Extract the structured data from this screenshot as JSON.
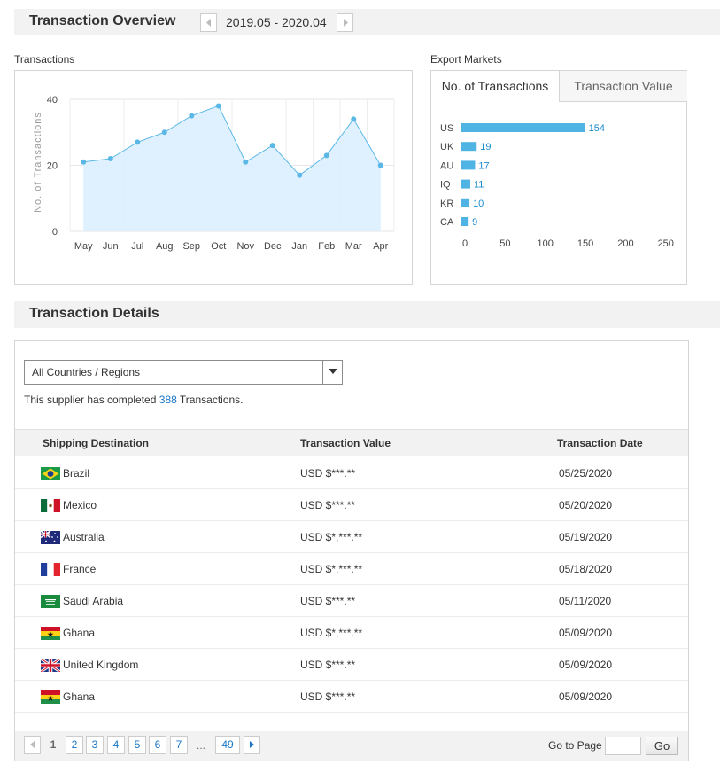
{
  "overview": {
    "title": "Transaction Overview",
    "date_range": "2019.05 - 2020.04"
  },
  "transactions_chart": {
    "caption": "Transactions",
    "ylabel": "No. of Transactions",
    "y_ticks": [
      "0",
      "20",
      "40"
    ]
  },
  "markets": {
    "caption": "Export Markets",
    "tabs": [
      "No. of Transactions",
      "Transaction Value"
    ],
    "x_ticks": [
      "0",
      "50",
      "100",
      "150",
      "200",
      "250"
    ]
  },
  "chart_data": [
    {
      "type": "area",
      "title": "",
      "xlabel": "",
      "ylabel": "No. of Transactions",
      "categories": [
        "May",
        "Jun",
        "Jul",
        "Aug",
        "Sep",
        "Oct",
        "Nov",
        "Dec",
        "Jan",
        "Feb",
        "Mar",
        "Apr"
      ],
      "values": [
        21,
        22,
        27,
        30,
        35,
        38,
        21,
        26,
        17,
        23,
        34,
        20
      ],
      "ylim": [
        0,
        40
      ],
      "grid": true,
      "color": "#5bb8e6"
    },
    {
      "type": "bar",
      "orientation": "horizontal",
      "categories": [
        "US",
        "UK",
        "AU",
        "IQ",
        "KR",
        "CA"
      ],
      "values": [
        154,
        19,
        17,
        11,
        10,
        9
      ],
      "xlim": [
        0,
        250
      ],
      "color": "#4fb3e4"
    }
  ],
  "details": {
    "title": "Transaction Details",
    "filter_value": "All Countries / Regions",
    "summary_prefix": "This supplier has completed",
    "summary_count": "388",
    "summary_suffix": "Transactions.",
    "headers": {
      "destination": "Shipping Destination",
      "value": "Transaction Value",
      "date": "Transaction Date"
    },
    "rows": [
      {
        "country": "Brazil",
        "flag": "brazil-flag-icon",
        "value": "USD $***.**",
        "date": "05/25/2020"
      },
      {
        "country": "Mexico",
        "flag": "mexico-flag-icon",
        "value": "USD $***.**",
        "date": "05/20/2020"
      },
      {
        "country": "Australia",
        "flag": "australia-flag-icon",
        "value": "USD $*,***.**",
        "date": "05/19/2020"
      },
      {
        "country": "France",
        "flag": "france-flag-icon",
        "value": "USD $*,***.**",
        "date": "05/18/2020"
      },
      {
        "country": "Saudi Arabia",
        "flag": "saudi-arabia-flag-icon",
        "value": "USD $***.**",
        "date": "05/11/2020"
      },
      {
        "country": "Ghana",
        "flag": "ghana-flag-icon",
        "value": "USD $*,***.**",
        "date": "05/09/2020"
      },
      {
        "country": "United Kingdom",
        "flag": "uk-flag-icon",
        "value": "USD $***.**",
        "date": "05/09/2020"
      },
      {
        "country": "Ghana",
        "flag": "ghana-flag-icon",
        "value": "USD $***.**",
        "date": "05/09/2020"
      }
    ]
  },
  "pagination": {
    "current": "1",
    "pages": [
      "2",
      "3",
      "4",
      "5",
      "6",
      "7"
    ],
    "ellipsis": "...",
    "last": "49",
    "goto_label": "Go to Page",
    "go_button": "Go"
  }
}
